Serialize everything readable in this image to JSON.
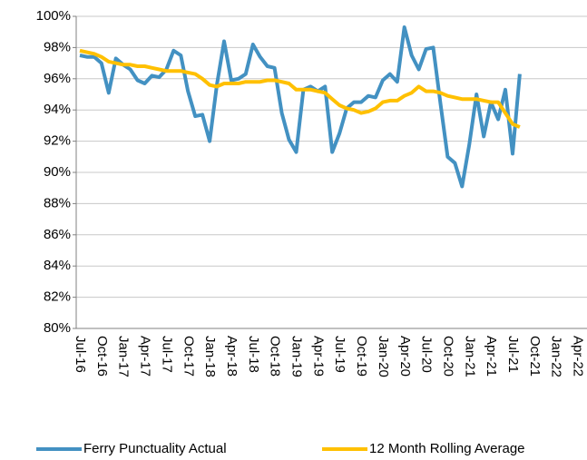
{
  "chart_data": {
    "type": "line",
    "categories": [
      "Jul-16",
      null,
      null,
      "Oct-16",
      null,
      null,
      "Jan-17",
      null,
      null,
      "Apr-17",
      null,
      null,
      "Jul-17",
      null,
      null,
      "Oct-17",
      null,
      null,
      "Jan-18",
      null,
      null,
      "Apr-18",
      null,
      null,
      "Jul-18",
      null,
      null,
      "Oct-18",
      null,
      null,
      "Jan-19",
      null,
      null,
      "Apr-19",
      null,
      null,
      "Jul-19",
      null,
      null,
      "Oct-19",
      null,
      null,
      "Jan-20",
      null,
      null,
      "Apr-20",
      null,
      null,
      "Jul-20",
      null,
      null,
      "Oct-20",
      null,
      null,
      "Jan-21",
      null,
      null,
      "Apr-21",
      null,
      null,
      "Jul-21",
      null,
      null,
      "Oct-21",
      null,
      null,
      "Jan-22",
      null,
      null,
      "Apr-22"
    ],
    "series": [
      {
        "name": "Ferry Punctuality Actual",
        "color": "#4391c2",
        "values": [
          97.5,
          97.4,
          97.4,
          97.0,
          95.1,
          97.3,
          96.9,
          96.6,
          95.9,
          95.7,
          96.2,
          96.1,
          96.6,
          97.8,
          97.5,
          95.2,
          93.6,
          93.7,
          92.0,
          95.6,
          98.4,
          95.9,
          96.0,
          96.3,
          98.2,
          97.4,
          96.8,
          96.7,
          93.8,
          92.1,
          91.3,
          95.3,
          95.5,
          95.2,
          95.5,
          91.3,
          92.5,
          94.1,
          94.5,
          94.5,
          94.9,
          94.8,
          95.9,
          96.3,
          95.8,
          99.3,
          97.5,
          96.6,
          97.9,
          98.0,
          94.4,
          91.0,
          90.6,
          89.1,
          91.8,
          95.0,
          92.3,
          94.5,
          93.4,
          95.3,
          91.2,
          96.3,
          null,
          null,
          null,
          null,
          null,
          null,
          null,
          null
        ]
      },
      {
        "name": "12 Month Rolling Average",
        "color": "#ffc000",
        "values": [
          97.8,
          97.7,
          97.6,
          97.4,
          97.1,
          97.0,
          96.9,
          96.9,
          96.8,
          96.8,
          96.7,
          96.6,
          96.5,
          96.5,
          96.5,
          96.4,
          96.3,
          96.0,
          95.6,
          95.5,
          95.7,
          95.7,
          95.7,
          95.8,
          95.8,
          95.8,
          95.9,
          95.9,
          95.8,
          95.7,
          95.3,
          95.3,
          95.3,
          95.2,
          95.1,
          94.7,
          94.3,
          94.1,
          94.0,
          93.8,
          93.9,
          94.1,
          94.5,
          94.6,
          94.6,
          94.9,
          95.1,
          95.5,
          95.2,
          95.2,
          95.1,
          94.9,
          94.8,
          94.7,
          94.7,
          94.7,
          94.6,
          94.5,
          94.5,
          93.8,
          93.1,
          92.9,
          null,
          null,
          null,
          null,
          null,
          null,
          null,
          null
        ]
      }
    ],
    "ylim": [
      80,
      100
    ],
    "yticks": [
      {
        "value": 80,
        "label": "80%"
      },
      {
        "value": 82,
        "label": "82%"
      },
      {
        "value": 84,
        "label": "84%"
      },
      {
        "value": 86,
        "label": "86%"
      },
      {
        "value": 88,
        "label": "88%"
      },
      {
        "value": 90,
        "label": "90%"
      },
      {
        "value": 92,
        "label": "92%"
      },
      {
        "value": 94,
        "label": "94%"
      },
      {
        "value": 96,
        "label": "96%"
      },
      {
        "value": 98,
        "label": "98%"
      },
      {
        "value": 100,
        "label": "100%"
      }
    ],
    "grid": true,
    "legend": "bottom"
  }
}
